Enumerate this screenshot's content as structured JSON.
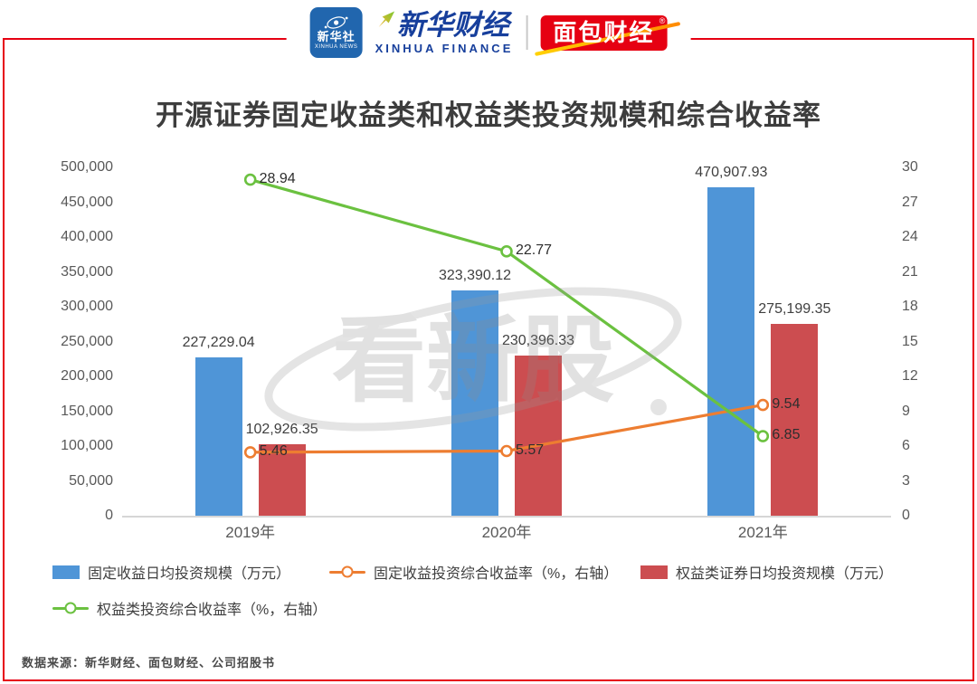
{
  "header": {
    "xinhua_news": {
      "cn": "新华社",
      "en": "XINHUA NEWS"
    },
    "xinhua_finance": {
      "cn": "新华财经",
      "en": "XINHUA FINANCE"
    },
    "bread_finance": {
      "cn": "面包财经",
      "reg": "®"
    }
  },
  "chart_data": {
    "type": "combo-bar-line",
    "title": "开源证券固定收益类和权益类投资规模和综合收益率",
    "categories": [
      "2019年",
      "2020年",
      "2021年"
    ],
    "series": [
      {
        "name": "固定收益日均投资规模（万元）",
        "kind": "bar",
        "axis": "left",
        "color": "#4f95d7",
        "values": [
          227229.04,
          323390.12,
          470907.93
        ],
        "labels": [
          "227,229.04",
          "323,390.12",
          "470,907.93"
        ]
      },
      {
        "name": "权益类证券日均投资规模（万元）",
        "kind": "bar",
        "axis": "left",
        "color": "#cc4d50",
        "values": [
          102926.35,
          230396.33,
          275199.35
        ],
        "labels": [
          "102,926.35",
          "230,396.33",
          "275,199.35"
        ]
      },
      {
        "name": "固定收益投资综合收益率（%，右轴）",
        "kind": "line",
        "axis": "right",
        "color": "#ed7d31",
        "values": [
          5.46,
          5.57,
          9.54
        ],
        "labels": [
          "5.46",
          "5.57",
          "9.54"
        ]
      },
      {
        "name": "权益类投资综合收益率（%，右轴）",
        "kind": "line",
        "axis": "right",
        "color": "#6bc140",
        "values": [
          28.94,
          22.77,
          6.85
        ],
        "labels": [
          "28.94",
          "22.77",
          "6.85"
        ]
      }
    ],
    "legend_order": [
      0,
      2,
      1,
      3
    ],
    "legend_position": "bottom",
    "grid": false,
    "left_axis": {
      "min": 0,
      "max": 500000,
      "step": 50000,
      "ticks": [
        "500,000",
        "450,000",
        "400,000",
        "350,000",
        "300,000",
        "250,000",
        "200,000",
        "150,000",
        "100,000",
        "50,000",
        "0"
      ]
    },
    "right_axis": {
      "min": 0,
      "max": 30,
      "step": 3,
      "ticks": [
        "30",
        "27",
        "24",
        "21",
        "18",
        "15",
        "12",
        "9",
        "6",
        "3",
        "0"
      ]
    }
  },
  "watermark": "看新股",
  "footer": {
    "source": "数据来源：新华财经、面包财经、公司招股书"
  }
}
